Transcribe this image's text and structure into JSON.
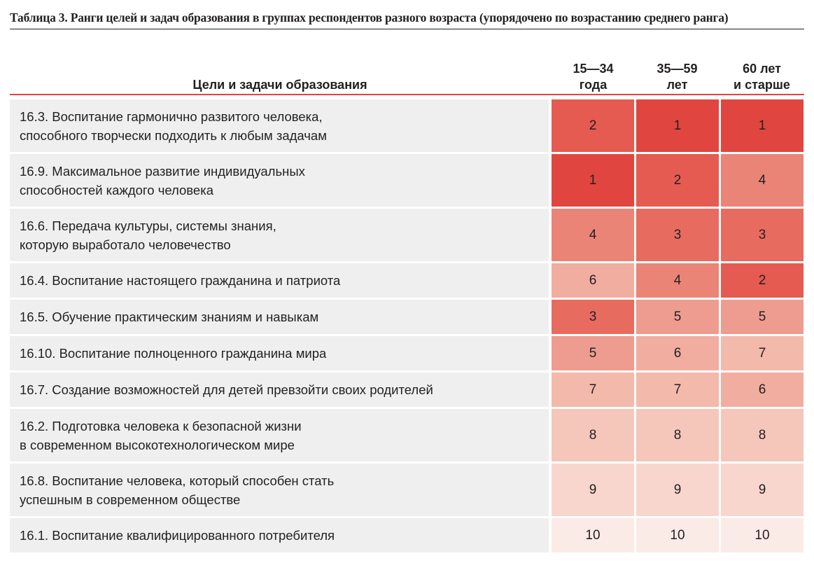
{
  "caption": "Таблица 3. Ранги целей и задач образования в группах респондентов разного возраста (упорядочено по возрастанию среднего ранга)",
  "header": {
    "goals": "Цели и задачи образования",
    "col1": [
      "15—34",
      "года"
    ],
    "col2": [
      "35—59",
      "лет"
    ],
    "col3": [
      "60 лет",
      "и старше"
    ]
  },
  "colors": {
    "accent": "#e2453f",
    "label_bg": "#efefef",
    "rank_scale": [
      "#e0463f",
      "#e55a51",
      "#e86b60",
      "#ea8477",
      "#ee9c8f",
      "#f1ad9f",
      "#f3b9ab",
      "#f5c6ba",
      "#f8d6cd",
      "#fbebe6"
    ]
  },
  "rows": [
    {
      "label": "16.3. Воспитание гармонично развитого человека,\nспособного творчески подходить к любым задачам",
      "ranks": [
        "2",
        "1",
        "1"
      ]
    },
    {
      "label": "16.9. Максимальное развитие индивидуальных\nспособностей каждого человека",
      "ranks": [
        "1",
        "2",
        "4"
      ]
    },
    {
      "label": "16.6. Передача культуры, системы знания,\nкоторую выработало человечество",
      "ranks": [
        "4",
        "3",
        "3"
      ]
    },
    {
      "label": "16.4. Воспитание настоящего гражданина и патриота",
      "ranks": [
        "6",
        "4",
        "2"
      ]
    },
    {
      "label": "16.5. Обучение практическим знаниям и навыкам",
      "ranks": [
        "3",
        "5",
        "5"
      ]
    },
    {
      "label": "16.10. Воспитание полноценного гражданина мира",
      "ranks": [
        "5",
        "6",
        "7"
      ]
    },
    {
      "label": "16.7. Создание возможностей для детей превзойти своих родителей",
      "ranks": [
        "7",
        "7",
        "6"
      ]
    },
    {
      "label": "16.2. Подготовка человека к безопасной жизни\nв современном высокотехнологическом мире",
      "ranks": [
        "8",
        "8",
        "8"
      ]
    },
    {
      "label": "16.8. Воспитание человека, который способен стать\nуспешным в современном обществе",
      "ranks": [
        "9",
        "9",
        "9"
      ]
    },
    {
      "label": "16.1. Воспитание квалифицированного потребителя",
      "ranks": [
        "10",
        "10",
        "10"
      ]
    }
  ]
}
